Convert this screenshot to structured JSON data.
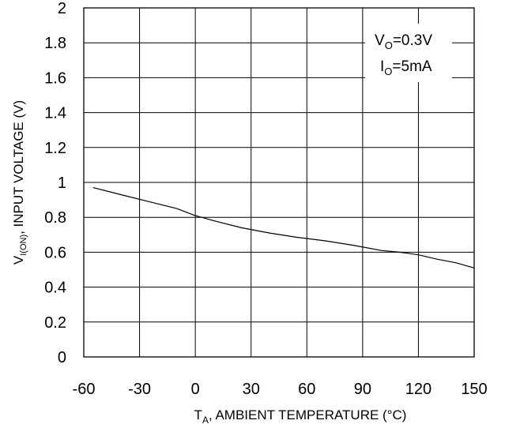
{
  "chart_data": {
    "type": "line",
    "xlabel": {
      "main": "T",
      "sub": "A",
      "rest": ", AMBIENT TEMPERATURE (°C)"
    },
    "ylabel": {
      "main": "V",
      "sub": "I(ON)",
      "rest": ", INPUT VOLTAGE (V)"
    },
    "xlim": [
      -60,
      150
    ],
    "ylim": [
      0,
      2
    ],
    "x_ticks": [
      "-60",
      "-30",
      "0",
      "30",
      "60",
      "90",
      "120",
      "150"
    ],
    "y_ticks": [
      "0",
      "0.2",
      "0.4",
      "0.6",
      "0.8",
      "1",
      "1.2",
      "1.4",
      "1.6",
      "1.8",
      "2"
    ],
    "grid": true,
    "legend": {
      "placement": "top-right",
      "line1": {
        "main": "V",
        "sub": "O",
        "rest": "=0.3V"
      },
      "line2": {
        "main": "I",
        "sub": "O",
        "rest": "=5mA"
      }
    },
    "series": [
      {
        "x": [
          -55,
          -40,
          -25,
          -10,
          0,
          10,
          25,
          40,
          55,
          70,
          85,
          100,
          110,
          120,
          130,
          140,
          150
        ],
        "y": [
          0.97,
          0.93,
          0.89,
          0.85,
          0.81,
          0.78,
          0.74,
          0.71,
          0.685,
          0.665,
          0.64,
          0.61,
          0.6,
          0.585,
          0.56,
          0.54,
          0.51
        ]
      }
    ]
  }
}
